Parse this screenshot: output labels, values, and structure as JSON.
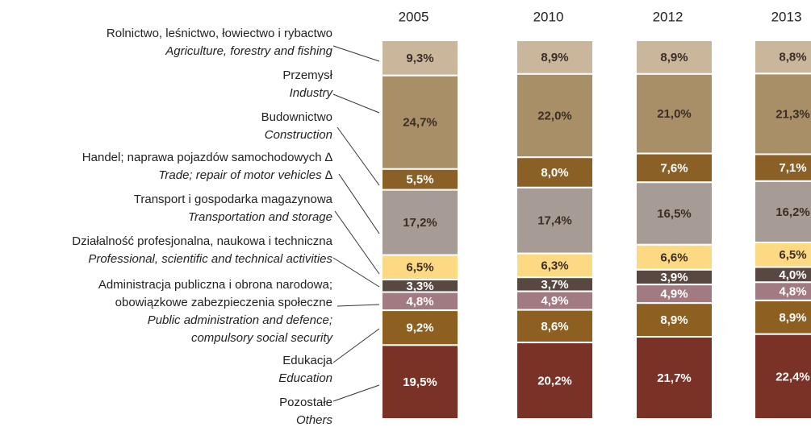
{
  "chart_data": {
    "type": "stacked_bar",
    "categories": [
      "2005",
      "2010",
      "2012",
      "2013"
    ],
    "series": [
      {
        "name": "Rolnictwo, leśnictwo, łowiectwo i rybactwo",
        "name_en": "Agriculture, forestry and fishing",
        "color": "#c9b69b",
        "label_color": "#3b2e26",
        "values": [
          9.3,
          8.9,
          8.9,
          8.8
        ],
        "value_labels": [
          "9,3%",
          "8,9%",
          "8,9%",
          "8,8%"
        ]
      },
      {
        "name": "Przemysł",
        "name_en": "Industry",
        "color": "#a88f68",
        "label_color": "#3b2e26",
        "values": [
          24.7,
          22.0,
          21.0,
          21.3
        ],
        "value_labels": [
          "24,7%",
          "22,0%",
          "21,0%",
          "21,3%"
        ]
      },
      {
        "name": "Budownictwo",
        "name_en": "Construction",
        "color": "#8b6026",
        "label_color": "#ffffff",
        "values": [
          5.5,
          8.0,
          7.6,
          7.1
        ],
        "value_labels": [
          "5,5%",
          "8,0%",
          "7,6%",
          "7,1%"
        ]
      },
      {
        "name": "Handel; naprawa pojazdów samochodowych ∆",
        "name_en": "Trade; repair of motor vehicles ∆",
        "color": "#a69c95",
        "label_color": "#3b2e26",
        "values": [
          17.2,
          17.4,
          16.5,
          16.2
        ],
        "value_labels": [
          "17,2%",
          "17,4%",
          "16,5%",
          "16,2%"
        ]
      },
      {
        "name": "Transport i gospodarka magazynowa",
        "name_en": "Transportation and storage",
        "color": "#fed983",
        "label_color": "#3b2e26",
        "values": [
          6.5,
          6.3,
          6.6,
          6.5
        ],
        "value_labels": [
          "6,5%",
          "6,3%",
          "6,6%",
          "6,5%"
        ]
      },
      {
        "name": "Działalność profesjonalna, naukowa i techniczna",
        "name_en": "Professional, scientific and technical activities",
        "color": "#594741",
        "label_color": "#ffffff",
        "values": [
          3.3,
          3.7,
          3.9,
          4.0
        ],
        "value_labels": [
          "3,3%",
          "3,7%",
          "3,9%",
          "4,0%"
        ]
      },
      {
        "name": "Administracja publiczna i obrona narodowa;\nobowiązkowe zabezpieczenia społeczne",
        "name_en": "Public administration and defence;\ncompulsory social security",
        "color": "#a17a82",
        "label_color": "#ffffff",
        "values": [
          4.8,
          4.9,
          4.9,
          4.8
        ],
        "value_labels": [
          "4,8%",
          "4,9%",
          "4,9%",
          "4,8%"
        ]
      },
      {
        "name": "Edukacja",
        "name_en": "Education",
        "color": "#8d6021",
        "label_color": "#ffffff",
        "values": [
          9.2,
          8.6,
          8.9,
          8.9
        ],
        "value_labels": [
          "9,2%",
          "8,6%",
          "8,9%",
          "8,9%"
        ]
      },
      {
        "name": "Pozostałe",
        "name_en": "Others",
        "color": "#7b3226",
        "label_color": "#ffffff",
        "values": [
          19.5,
          20.2,
          21.7,
          22.4
        ],
        "value_labels": [
          "19,5%",
          "20,2%",
          "21,7%",
          "22,4%"
        ]
      }
    ],
    "ylim": [
      0,
      100
    ]
  }
}
